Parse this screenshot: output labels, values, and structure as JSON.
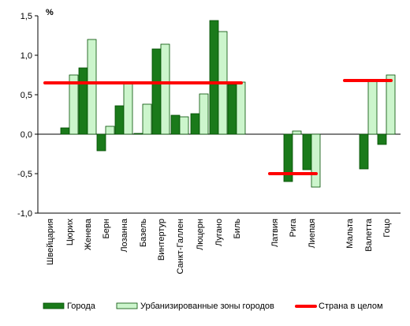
{
  "chart_data": {
    "type": "bar",
    "ylabel": "%",
    "ylim": [
      -1.0,
      1.5
    ],
    "yticks": [
      "1,5",
      "1,0",
      "0,5",
      "0,0",
      "-0,5",
      "-1,0"
    ],
    "ytick_values": [
      1.5,
      1.0,
      0.5,
      0.0,
      -0.5,
      -1.0
    ],
    "grid": false,
    "legend_position": "bottom",
    "categories": [
      "Швейцария",
      "Цюрих",
      "Женева",
      "Берн",
      "Лозанна",
      "Базель",
      "Винтертур",
      "Санкт-Галлен",
      "Люцерн",
      "Лугано",
      "Биль",
      "Латвия",
      "Рига",
      "Лиепая",
      "Мальта",
      "Валетта",
      "Гоцо"
    ],
    "groups": [
      {
        "country": "Швейцария",
        "slots": [
          0,
          10
        ],
        "country_value": 0.65
      },
      {
        "country": "Латвия",
        "slots": [
          11,
          13
        ],
        "country_value": -0.5
      },
      {
        "country": "Мальта",
        "slots": [
          14,
          16
        ],
        "country_value": 0.68
      }
    ],
    "series": [
      {
        "name": "Города",
        "color": "#1a7a1a",
        "values": [
          null,
          0.08,
          0.84,
          -0.21,
          0.36,
          0.01,
          1.08,
          0.24,
          0.26,
          1.44,
          0.63,
          null,
          -0.6,
          -0.45,
          null,
          -0.44,
          -0.13
        ]
      },
      {
        "name": "Урбанизированные зоны городов",
        "color": "#ccf5cc",
        "values": [
          null,
          0.75,
          1.2,
          0.1,
          0.64,
          0.38,
          1.14,
          0.22,
          0.51,
          1.3,
          0.66,
          null,
          0.04,
          -0.67,
          null,
          0.69,
          0.75
        ]
      },
      {
        "name": "Страна в целом",
        "color": "#ff0000",
        "kind": "reference-line"
      }
    ]
  }
}
